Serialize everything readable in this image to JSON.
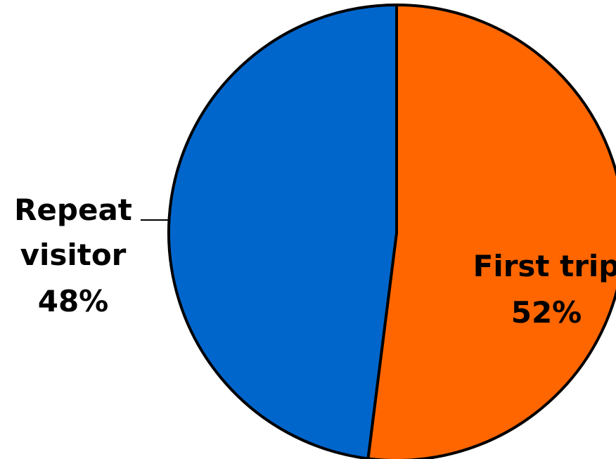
{
  "chart_data": {
    "type": "pie",
    "title": "",
    "slices": [
      {
        "label": "First trip",
        "value": 52,
        "display": "52%",
        "color": "#FF6600"
      },
      {
        "label": "Repeat visitor",
        "label_lines": [
          "Repeat",
          "visitor"
        ],
        "value": 48,
        "display": "48%",
        "color": "#0066CC"
      }
    ],
    "start_angle": "12 o'clock",
    "direction": "clockwise",
    "outline_color": "#000000"
  }
}
